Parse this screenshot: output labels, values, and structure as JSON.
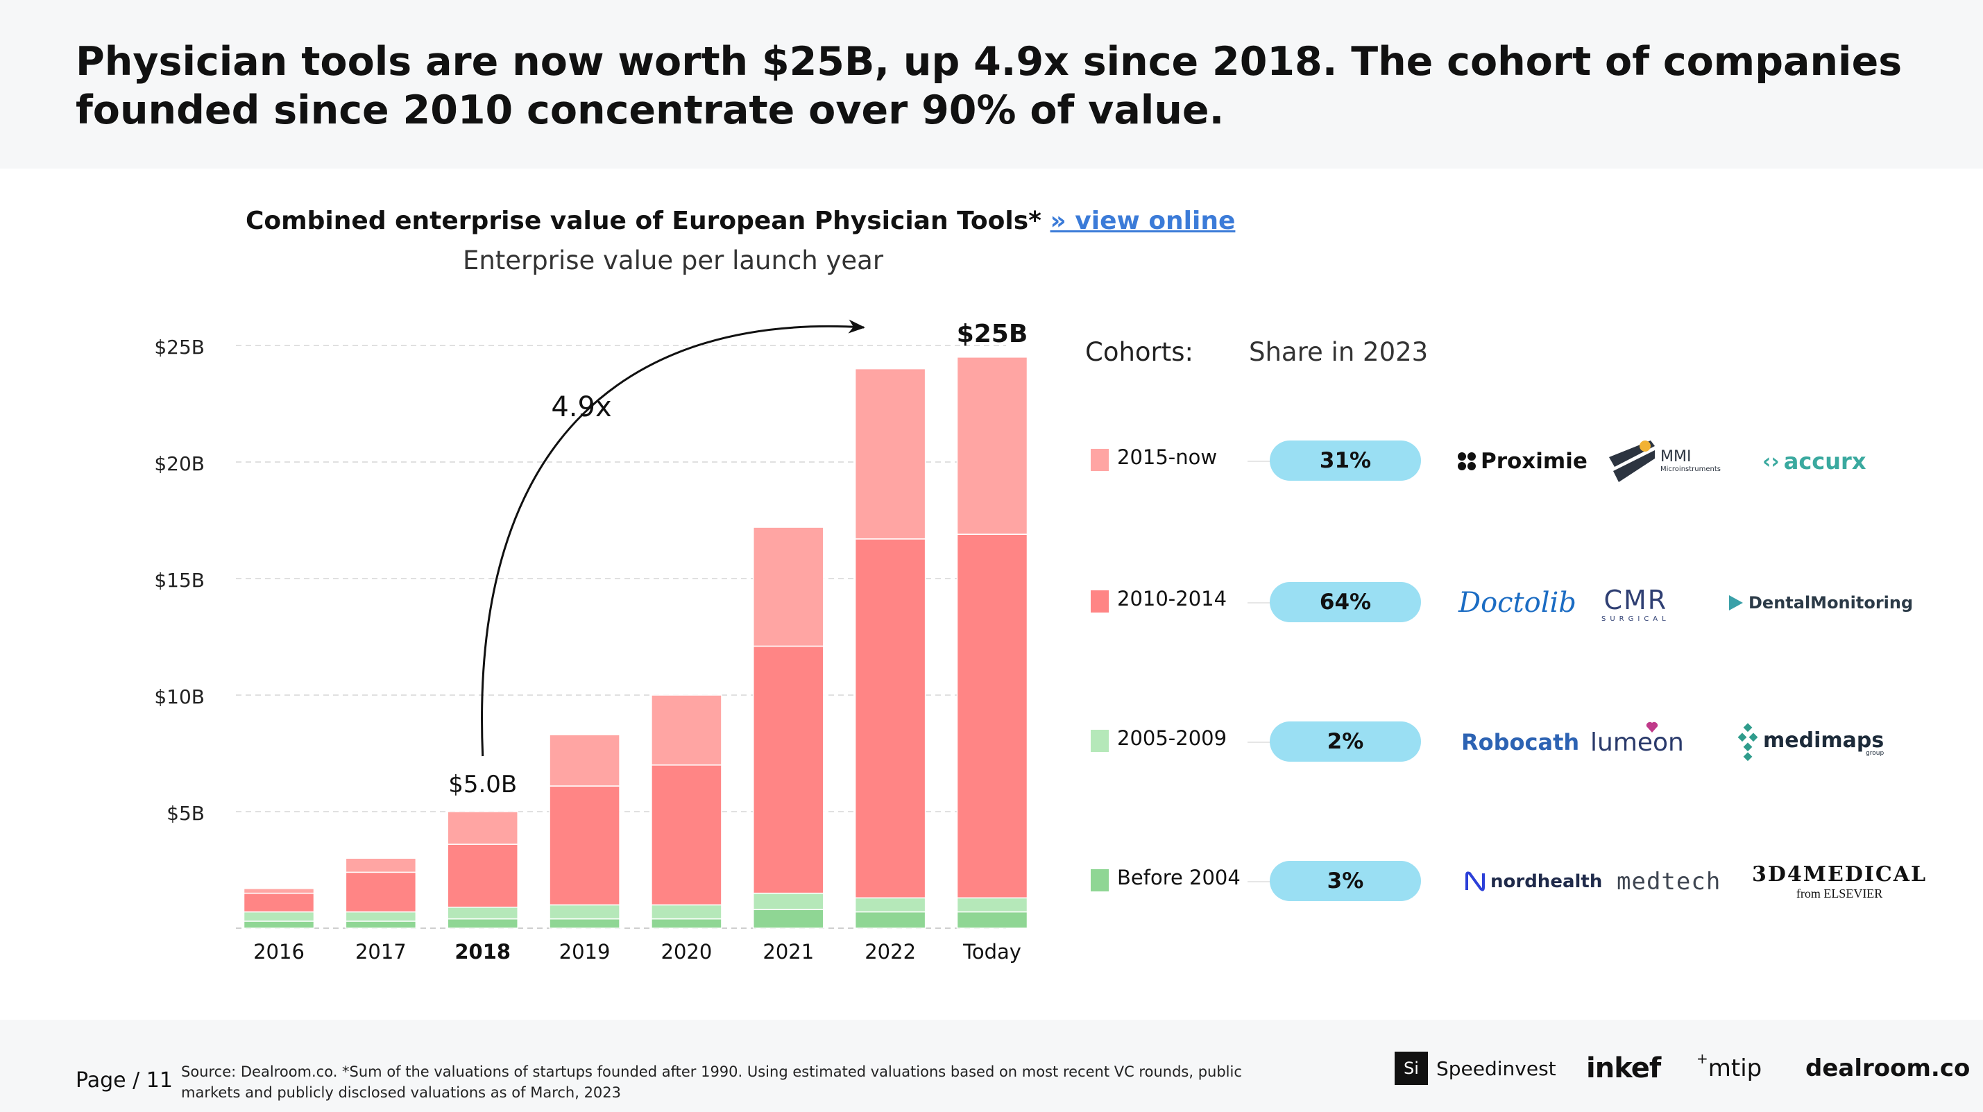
{
  "headline": "Physician tools are now worth $25B, up 4.9x since 2018. The cohort of companies founded since 2010 concentrate over 90% of value.",
  "chart_title": "Combined enterprise value of European Physician Tools*",
  "view_online_link": "» view online",
  "chart_subtitle": "Enterprise value per launch year",
  "chart_data": {
    "type": "bar",
    "stacked": true,
    "categories": [
      "2016",
      "2017",
      "2018",
      "2019",
      "2020",
      "2021",
      "2022",
      "Today"
    ],
    "highlighted_category": "2018",
    "series": [
      {
        "name": "Before 2004",
        "color": "#8fd694",
        "values": [
          0.3,
          0.3,
          0.4,
          0.4,
          0.4,
          0.8,
          0.7,
          0.7
        ]
      },
      {
        "name": "2005-2009",
        "color": "#b5e8b9",
        "values": [
          0.4,
          0.4,
          0.5,
          0.6,
          0.6,
          0.7,
          0.6,
          0.6
        ]
      },
      {
        "name": "2010-2014",
        "color": "#ff8585",
        "values": [
          0.8,
          1.7,
          2.7,
          5.1,
          6.0,
          10.6,
          15.4,
          15.6
        ]
      },
      {
        "name": "2015-now",
        "color": "#ffa5a3",
        "values": [
          0.2,
          0.6,
          1.4,
          2.2,
          3.0,
          5.1,
          7.3,
          7.6
        ]
      }
    ],
    "yticks": [
      5,
      10,
      15,
      20,
      25
    ],
    "ytick_labels": [
      "$5B",
      "$10B",
      "$15B",
      "$20B",
      "$25B"
    ],
    "ylim": [
      0,
      25
    ],
    "grid": true,
    "bar_labels": [
      {
        "category": "2018",
        "label": "$5.0B"
      },
      {
        "category": "Today",
        "label": "$25B"
      }
    ],
    "annotation": {
      "label": "4.9x",
      "from": "2018",
      "to": "Today"
    }
  },
  "legend": {
    "cohorts_label": "Cohorts:",
    "share_label": "Share in 2023",
    "rows": [
      {
        "cohort": "2015-now",
        "share": "31%",
        "color": "#ffa5a3",
        "logos": [
          "Proximie",
          "MMI",
          "Microinstruments",
          "accurx"
        ]
      },
      {
        "cohort": "2010-2014",
        "share": "64%",
        "color": "#ff8585",
        "logos": [
          "Doctolib",
          "CMR",
          "SURGICAL",
          "DentalMonitoring"
        ]
      },
      {
        "cohort": "2005-2009",
        "share": "2%",
        "color": "#b5e8b9",
        "logos": [
          "Robocath",
          "lumeon",
          "medimaps",
          "group"
        ]
      },
      {
        "cohort": "Before 2004",
        "share": "3%",
        "color": "#8fd694",
        "logos": [
          "nordhealth",
          "medtech",
          "3D4MEDICAL",
          "from ELSEVIER"
        ]
      }
    ]
  },
  "footer": {
    "page_label": "Page / 11",
    "source": "Source: Dealroom.co. *Sum of the valuations of startups founded after 1990. Using estimated valuations based on most recent VC rounds, public markets and publicly disclosed valuations as of March, 2023",
    "partners": [
      "Si",
      "Speedinvest",
      "inkef",
      "mtip",
      "dealroom.co"
    ]
  }
}
